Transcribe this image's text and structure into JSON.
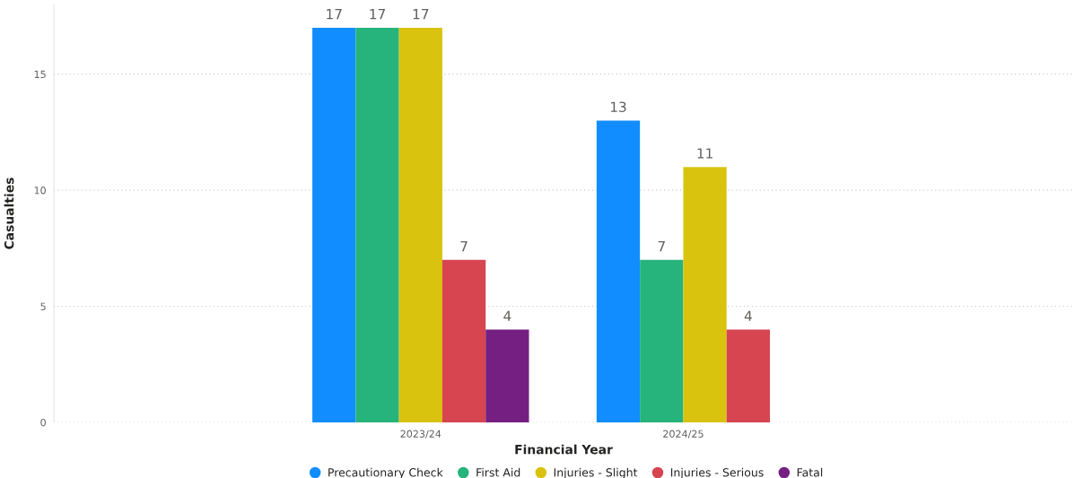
{
  "chart_data": {
    "type": "bar",
    "xlabel": "Financial Year",
    "ylabel": "Casualties",
    "categories": [
      "2023/24",
      "2024/25"
    ],
    "series": [
      {
        "name": "Precautionary Check",
        "color": "#118dff",
        "values": [
          17,
          13
        ]
      },
      {
        "name": "First Aid",
        "color": "#26b37c",
        "values": [
          17,
          7
        ]
      },
      {
        "name": "Injuries - Slight",
        "color": "#d9c30f",
        "values": [
          17,
          11
        ]
      },
      {
        "name": "Injuries - Serious",
        "color": "#d64550",
        "values": [
          7,
          4
        ]
      },
      {
        "name": "Fatal",
        "color": "#751f83",
        "values": [
          4,
          null
        ]
      }
    ],
    "ylim": [
      0,
      18
    ],
    "yticks": [
      0,
      5,
      10,
      15
    ],
    "grid": "y",
    "legend": "bottom",
    "data_labels": true
  }
}
